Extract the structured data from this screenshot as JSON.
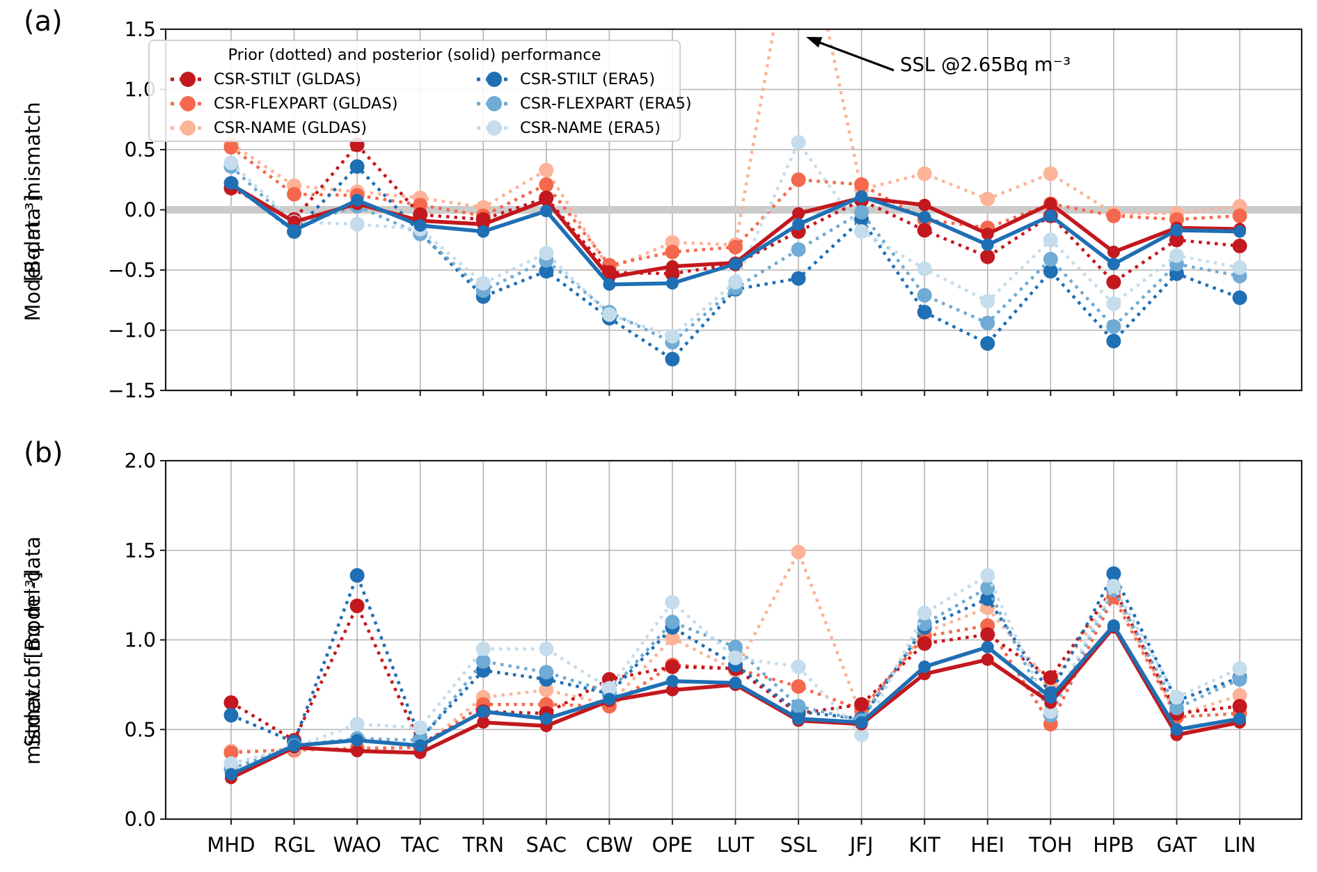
{
  "figure": {
    "panel_a_label": "(a)",
    "panel_b_label": "(b)"
  },
  "axes": {
    "stations": [
      "MHD",
      "RGL",
      "WAO",
      "TAC",
      "TRN",
      "SAC",
      "CBW",
      "OPE",
      "LUT",
      "SSL",
      "JFJ",
      "KIT",
      "HEI",
      "TOH",
      "HPB",
      "GAT",
      "LIN"
    ],
    "panel_a": {
      "ylabel_line1": "Model-data mismatch",
      "ylabel_line2": "[Bq m⁻³]",
      "ylim": [
        -1.5,
        1.5
      ],
      "yticks": [
        {
          "v": 1.5,
          "label": "1.5"
        },
        {
          "v": 1.0,
          "label": "1.0"
        },
        {
          "v": 0.5,
          "label": "0.5"
        },
        {
          "v": 0.0,
          "label": "0.0"
        },
        {
          "v": -0.5,
          "label": "−0.5"
        },
        {
          "v": -1.0,
          "label": "−1.0"
        },
        {
          "v": -1.5,
          "label": "−1.5"
        }
      ],
      "zero_band": true
    },
    "panel_b": {
      "ylabel_line1": "Stdev. of model-data",
      "ylabel_line2": "mismatch [Bq m⁻³]",
      "ylim": [
        0.0,
        2.0
      ],
      "yticks": [
        {
          "v": 2.0,
          "label": "2.0"
        },
        {
          "v": 1.5,
          "label": "1.5"
        },
        {
          "v": 1.0,
          "label": "1.0"
        },
        {
          "v": 0.5,
          "label": "0.5"
        },
        {
          "v": 0.0,
          "label": "0.0"
        }
      ],
      "zero_band": false
    }
  },
  "legend": {
    "title": "Prior (dotted) and posterior (solid) performance",
    "entries": [
      {
        "label": "CSR-STILT (GLDAS)",
        "color": "#c3181d"
      },
      {
        "label": "CSR-FLEXPART (GLDAS)",
        "color": "#f4694d"
      },
      {
        "label": "CSR-NAME (GLDAS)",
        "color": "#fcb398"
      },
      {
        "label": "CSR-STILT (ERA5)",
        "color": "#1f6fb4"
      },
      {
        "label": "CSR-FLEXPART (ERA5)",
        "color": "#6fabd4"
      },
      {
        "label": "CSR-NAME (ERA5)",
        "color": "#c4dcec"
      }
    ]
  },
  "annotation": {
    "text": "SSL @2.65Bq m⁻³"
  },
  "colors": {
    "grid": "#b4b4b4",
    "frame": "#1a1a1a",
    "zero_band": "#cbcbcb",
    "posterior_gldas": "#c3181d",
    "posterior_era5": "#1f6fb4"
  },
  "chart_data": [
    {
      "type": "line",
      "panel": "a",
      "title": "Model-data mismatch [Bq m-3]",
      "categories": [
        "MHD",
        "RGL",
        "WAO",
        "TAC",
        "TRN",
        "SAC",
        "CBW",
        "OPE",
        "LUT",
        "SSL",
        "JFJ",
        "KIT",
        "HEI",
        "TOH",
        "HPB",
        "GAT",
        "LIN"
      ],
      "ylim": [
        -1.5,
        1.5
      ],
      "grid": true,
      "series": [
        {
          "id": "prior-csr-name-gldas",
          "name": "CSR-NAME (GLDAS) prior",
          "style": "dotted",
          "color": "#fcb398",
          "values": [
            0.55,
            0.2,
            0.15,
            0.1,
            0.02,
            0.33,
            -0.49,
            -0.27,
            -0.29,
            2.65,
            0.17,
            0.3,
            0.09,
            0.3,
            -0.03,
            -0.03,
            0.03
          ]
        },
        {
          "id": "prior-csr-flexpart-gldas",
          "name": "CSR-FLEXPART (GLDAS) prior",
          "style": "dotted",
          "color": "#f4694d",
          "values": [
            0.52,
            0.13,
            0.12,
            0.04,
            -0.05,
            0.21,
            -0.46,
            -0.35,
            -0.31,
            0.25,
            0.21,
            -0.08,
            -0.15,
            0.05,
            -0.05,
            -0.08,
            -0.05
          ]
        },
        {
          "id": "prior-csr-stilt-gldas",
          "name": "CSR-STILT (GLDAS) prior",
          "style": "dotted",
          "color": "#c3181d",
          "values": [
            0.18,
            -0.08,
            0.54,
            -0.04,
            -0.08,
            0.1,
            -0.52,
            -0.53,
            -0.45,
            -0.18,
            0.08,
            -0.17,
            -0.39,
            -0.05,
            -0.6,
            -0.25,
            -0.3
          ]
        },
        {
          "id": "prior-csr-stilt-era5",
          "name": "CSR-STILT (ERA5) prior",
          "style": "dotted",
          "color": "#1f6fb4",
          "values": [
            0.22,
            -0.18,
            0.36,
            -0.19,
            -0.72,
            -0.51,
            -0.9,
            -1.24,
            -0.66,
            -0.57,
            -0.08,
            -0.85,
            -1.11,
            -0.51,
            -1.09,
            -0.53,
            -0.73
          ]
        },
        {
          "id": "prior-csr-flexpart-era5",
          "name": "CSR-FLEXPART (ERA5) prior",
          "style": "dotted",
          "color": "#6fabd4",
          "values": [
            0.36,
            -0.13,
            0.03,
            -0.2,
            -0.67,
            -0.42,
            -0.85,
            -1.1,
            -0.65,
            -0.33,
            -0.02,
            -0.71,
            -0.94,
            -0.41,
            -0.97,
            -0.45,
            -0.55
          ]
        },
        {
          "id": "prior-csr-name-era5",
          "name": "CSR-NAME (ERA5) prior",
          "style": "dotted",
          "color": "#c4dcec",
          "values": [
            0.39,
            -0.1,
            -0.12,
            -0.16,
            -0.61,
            -0.36,
            -0.87,
            -1.05,
            -0.6,
            0.56,
            -0.18,
            -0.49,
            -0.76,
            -0.25,
            -0.78,
            -0.38,
            -0.48
          ]
        },
        {
          "id": "posterior-gldas",
          "name": "Posterior (GLDAS)",
          "style": "solid",
          "color": "#c3181d",
          "values": [
            0.21,
            -0.1,
            0.05,
            -0.09,
            -0.12,
            0.08,
            -0.56,
            -0.47,
            -0.44,
            -0.03,
            0.1,
            0.04,
            -0.2,
            0.05,
            -0.35,
            -0.15,
            -0.16
          ]
        },
        {
          "id": "posterior-era5",
          "name": "Posterior (ERA5)",
          "style": "solid",
          "color": "#1f6fb4",
          "values": [
            0.22,
            -0.17,
            0.08,
            -0.13,
            -0.18,
            -0.01,
            -0.62,
            -0.61,
            -0.45,
            -0.12,
            0.11,
            -0.06,
            -0.29,
            -0.05,
            -0.45,
            -0.17,
            -0.18
          ]
        }
      ]
    },
    {
      "type": "line",
      "panel": "b",
      "title": "Stdev. of model-data mismatch [Bq m-3]",
      "categories": [
        "MHD",
        "RGL",
        "WAO",
        "TAC",
        "TRN",
        "SAC",
        "CBW",
        "OPE",
        "LUT",
        "SSL",
        "JFJ",
        "KIT",
        "HEI",
        "TOH",
        "HPB",
        "GAT",
        "LIN"
      ],
      "ylim": [
        0.0,
        2.0
      ],
      "grid": true,
      "series": [
        {
          "id": "prior-csr-name-gldas",
          "name": "CSR-NAME (GLDAS) prior",
          "style": "dotted",
          "color": "#fcb398",
          "values": [
            0.38,
            0.38,
            0.4,
            0.4,
            0.68,
            0.72,
            0.64,
            1.01,
            0.83,
            1.49,
            0.58,
            1.04,
            1.18,
            0.75,
            1.26,
            0.58,
            0.69
          ]
        },
        {
          "id": "prior-csr-flexpart-gldas",
          "name": "CSR-FLEXPART (GLDAS) prior",
          "style": "dotted",
          "color": "#f4694d",
          "values": [
            0.37,
            0.39,
            0.39,
            0.4,
            0.64,
            0.64,
            0.63,
            0.86,
            0.84,
            0.74,
            0.61,
            1.02,
            1.08,
            0.53,
            1.24,
            0.57,
            0.59
          ]
        },
        {
          "id": "prior-csr-stilt-gldas",
          "name": "CSR-STILT (GLDAS) prior",
          "style": "dotted",
          "color": "#c3181d",
          "values": [
            0.65,
            0.44,
            1.19,
            0.42,
            0.6,
            0.59,
            0.78,
            0.85,
            0.84,
            0.59,
            0.64,
            0.98,
            1.03,
            0.79,
            1.29,
            0.59,
            0.63
          ]
        },
        {
          "id": "prior-csr-stilt-era5",
          "name": "CSR-STILT (ERA5) prior",
          "style": "dotted",
          "color": "#1f6fb4",
          "values": [
            0.58,
            0.43,
            1.36,
            0.45,
            0.83,
            0.78,
            0.7,
            1.07,
            0.86,
            0.6,
            0.56,
            1.07,
            1.23,
            0.7,
            1.37,
            0.66,
            0.79
          ]
        },
        {
          "id": "prior-csr-flexpart-era5",
          "name": "CSR-FLEXPART (ERA5) prior",
          "style": "dotted",
          "color": "#6fabd4",
          "values": [
            0.28,
            0.41,
            0.45,
            0.44,
            0.88,
            0.82,
            0.71,
            1.1,
            0.96,
            0.63,
            0.55,
            1.09,
            1.29,
            0.58,
            1.28,
            0.62,
            0.78
          ]
        },
        {
          "id": "prior-csr-name-era5",
          "name": "CSR-NAME (ERA5) prior",
          "style": "dotted",
          "color": "#c4dcec",
          "values": [
            0.31,
            0.4,
            0.53,
            0.51,
            0.95,
            0.95,
            0.73,
            1.21,
            0.9,
            0.85,
            0.47,
            1.15,
            1.36,
            0.6,
            1.3,
            0.68,
            0.84
          ]
        },
        {
          "id": "posterior-gldas",
          "name": "Posterior (GLDAS)",
          "style": "solid",
          "color": "#c3181d",
          "values": [
            0.23,
            0.4,
            0.38,
            0.37,
            0.54,
            0.52,
            0.66,
            0.72,
            0.75,
            0.55,
            0.53,
            0.81,
            0.89,
            0.65,
            1.07,
            0.47,
            0.54
          ]
        },
        {
          "id": "posterior-era5",
          "name": "Posterior (ERA5)",
          "style": "solid",
          "color": "#1f6fb4",
          "values": [
            0.25,
            0.41,
            0.44,
            0.41,
            0.6,
            0.56,
            0.67,
            0.77,
            0.76,
            0.56,
            0.54,
            0.85,
            0.96,
            0.68,
            1.08,
            0.5,
            0.56
          ]
        }
      ]
    }
  ]
}
